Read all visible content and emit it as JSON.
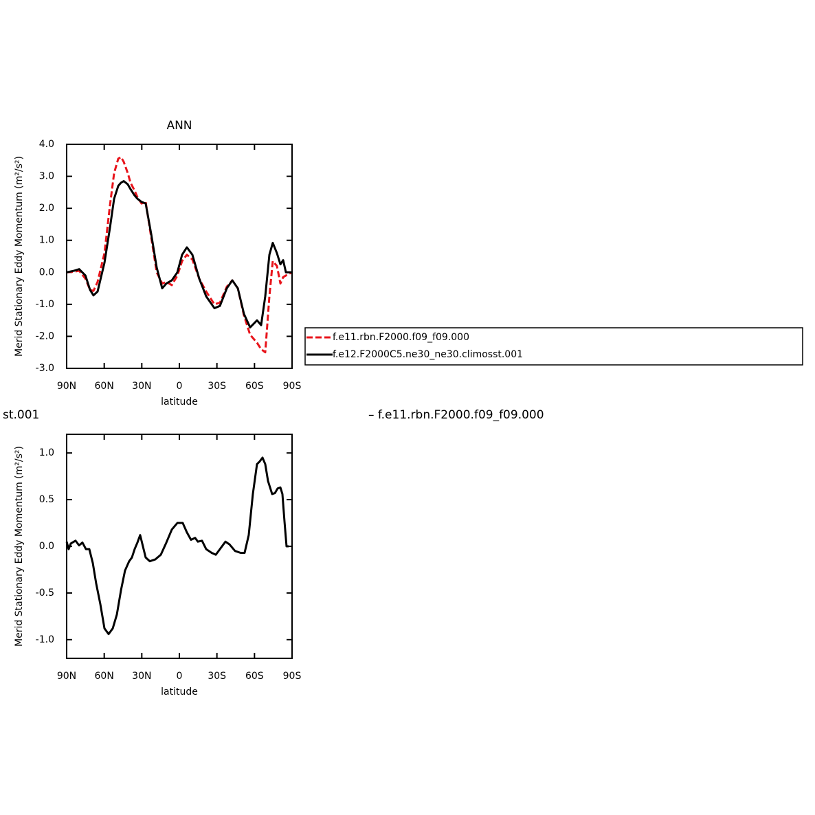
{
  "chart_data": [
    {
      "type": "line",
      "title": "ANN",
      "x_label": "latitude",
      "y_label": "Merid Stationary Eddy Momentum (m²/s²)",
      "xlim": [
        90,
        -90
      ],
      "xticks": [
        {
          "value": 90,
          "label": "90N"
        },
        {
          "value": 60,
          "label": "60N"
        },
        {
          "value": 30,
          "label": "30N"
        },
        0,
        {
          "value": -30,
          "label": "30S"
        },
        {
          "value": -60,
          "label": "60S"
        },
        {
          "value": -90,
          "label": "90S"
        }
      ],
      "ylim": [
        -3,
        4
      ],
      "yticks": [
        {
          "value": -3,
          "label": "-3.0"
        },
        {
          "value": -2,
          "label": "-2.0"
        },
        {
          "value": -1,
          "label": "-1.0"
        },
        {
          "value": 0,
          "label": "0.0"
        },
        {
          "value": 1,
          "label": "1.0"
        },
        {
          "value": 2,
          "label": "2.0"
        },
        {
          "value": 3,
          "label": "3.0"
        },
        {
          "value": 4,
          "label": "4.0"
        }
      ],
      "legend": "right",
      "x": [
        90,
        84,
        80,
        75,
        71.3,
        68.6,
        65.3,
        59.8,
        55.4,
        52.1,
        48.8,
        46.6,
        44.4,
        41.2,
        39,
        35.7,
        33.5,
        30.2,
        26.9,
        22.5,
        18.1,
        13.7,
        10.4,
        6,
        1.6,
        -2.2,
        -6,
        -10.4,
        -15.9,
        -21.4,
        -28,
        -32.4,
        -37.9,
        -42.3,
        -46.7,
        -51.6,
        -56.5,
        -62,
        -65.3,
        -68.6,
        -71.9,
        -74.6,
        -77.9,
        -80.7,
        -82.9,
        -85.1,
        -87.3,
        -90
      ],
      "series": [
        {
          "name": "f.e11.rbn.F2000.f09_f09.000",
          "color": "#e8141b",
          "dash": true,
          "values": [
            0,
            0.02,
            0.05,
            -0.2,
            -0.55,
            -0.58,
            -0.3,
            0.6,
            2.1,
            3.1,
            3.55,
            3.6,
            3.45,
            3.1,
            2.8,
            2.55,
            2.35,
            2.15,
            2.2,
            1.1,
            0.0,
            -0.35,
            -0.3,
            -0.4,
            -0.1,
            0.35,
            0.55,
            0.4,
            -0.2,
            -0.6,
            -1.0,
            -0.95,
            -0.45,
            -0.25,
            -0.5,
            -1.35,
            -1.95,
            -2.2,
            -2.4,
            -2.5,
            -0.75,
            0.35,
            0.2,
            -0.35,
            -0.15,
            -0.1,
            -0.05,
            0
          ]
        },
        {
          "name": "f.e12.F2000C5.ne30_ne30.climosst.001",
          "color": "#000000",
          "dash": false,
          "values": [
            0,
            0.05,
            0.1,
            -0.1,
            -0.55,
            -0.72,
            -0.6,
            0.3,
            1.4,
            2.3,
            2.7,
            2.8,
            2.85,
            2.75,
            2.6,
            2.4,
            2.3,
            2.2,
            2.15,
            1.2,
            0.15,
            -0.5,
            -0.35,
            -0.25,
            0.0,
            0.55,
            0.78,
            0.55,
            -0.2,
            -0.75,
            -1.12,
            -1.05,
            -0.5,
            -0.25,
            -0.5,
            -1.3,
            -1.72,
            -1.5,
            -1.65,
            -0.75,
            0.55,
            0.92,
            0.6,
            0.25,
            0.38,
            0.0,
            0.0,
            0.0
          ]
        }
      ]
    },
    {
      "type": "line",
      "title": "st.001",
      "subtitle": "– f.e11.rbn.F2000.f09_f09.000",
      "x_label": "latitude",
      "y_label": "Merid Stationary Eddy Momentum (m²/s²)",
      "xlim": [
        90,
        -90
      ],
      "xticks": [
        {
          "value": 90,
          "label": "90N"
        },
        {
          "value": 60,
          "label": "60N"
        },
        {
          "value": 30,
          "label": "30N"
        },
        0,
        {
          "value": -30,
          "label": "30S"
        },
        {
          "value": -60,
          "label": "60S"
        },
        {
          "value": -90,
          "label": "90S"
        }
      ],
      "ylim": [
        -1.2,
        1.2
      ],
      "yticks": [
        {
          "value": -1,
          "label": "-1.0"
        },
        -0.5,
        {
          "value": 0,
          "label": "0.0"
        },
        0.5,
        {
          "value": 1,
          "label": "1.0"
        }
      ],
      "color": "#000000",
      "x": [
        90,
        88.4,
        86.7,
        82.9,
        80.1,
        77.4,
        74.6,
        71.9,
        69.1,
        66.4,
        63.1,
        59.8,
        56.5,
        53.2,
        49.9,
        46.6,
        43.4,
        40.1,
        37.9,
        35.7,
        33.5,
        31.3,
        29.1,
        26.9,
        23.6,
        19.2,
        14.8,
        10.4,
        6,
        1.6,
        -2.7,
        -6,
        -9.3,
        -12.6,
        -14.8,
        -18.1,
        -21.4,
        -25.8,
        -29.1,
        -32.4,
        -36.8,
        -40.1,
        -44.5,
        -48.9,
        -52.1,
        -55.4,
        -58.7,
        -62,
        -64.2,
        -66.4,
        -68.6,
        -70.8,
        -74.1,
        -76.3,
        -78.5,
        -80.7,
        -82.3,
        -84,
        -85.6,
        -87.3
      ],
      "values": [
        0.05,
        -0.03,
        0.03,
        0.06,
        0.01,
        0.04,
        -0.03,
        -0.03,
        -0.18,
        -0.4,
        -0.62,
        -0.88,
        -0.94,
        -0.88,
        -0.73,
        -0.47,
        -0.26,
        -0.16,
        -0.12,
        -0.03,
        0.04,
        0.12,
        0.0,
        -0.12,
        -0.16,
        -0.14,
        -0.09,
        0.04,
        0.18,
        0.25,
        0.25,
        0.15,
        0.07,
        0.09,
        0.05,
        0.06,
        -0.03,
        -0.07,
        -0.09,
        -0.03,
        0.05,
        0.02,
        -0.05,
        -0.07,
        -0.07,
        0.12,
        0.56,
        0.88,
        0.91,
        0.95,
        0.88,
        0.7,
        0.56,
        0.57,
        0.62,
        0.63,
        0.56,
        0.26,
        0.0,
        0.0
      ]
    }
  ]
}
